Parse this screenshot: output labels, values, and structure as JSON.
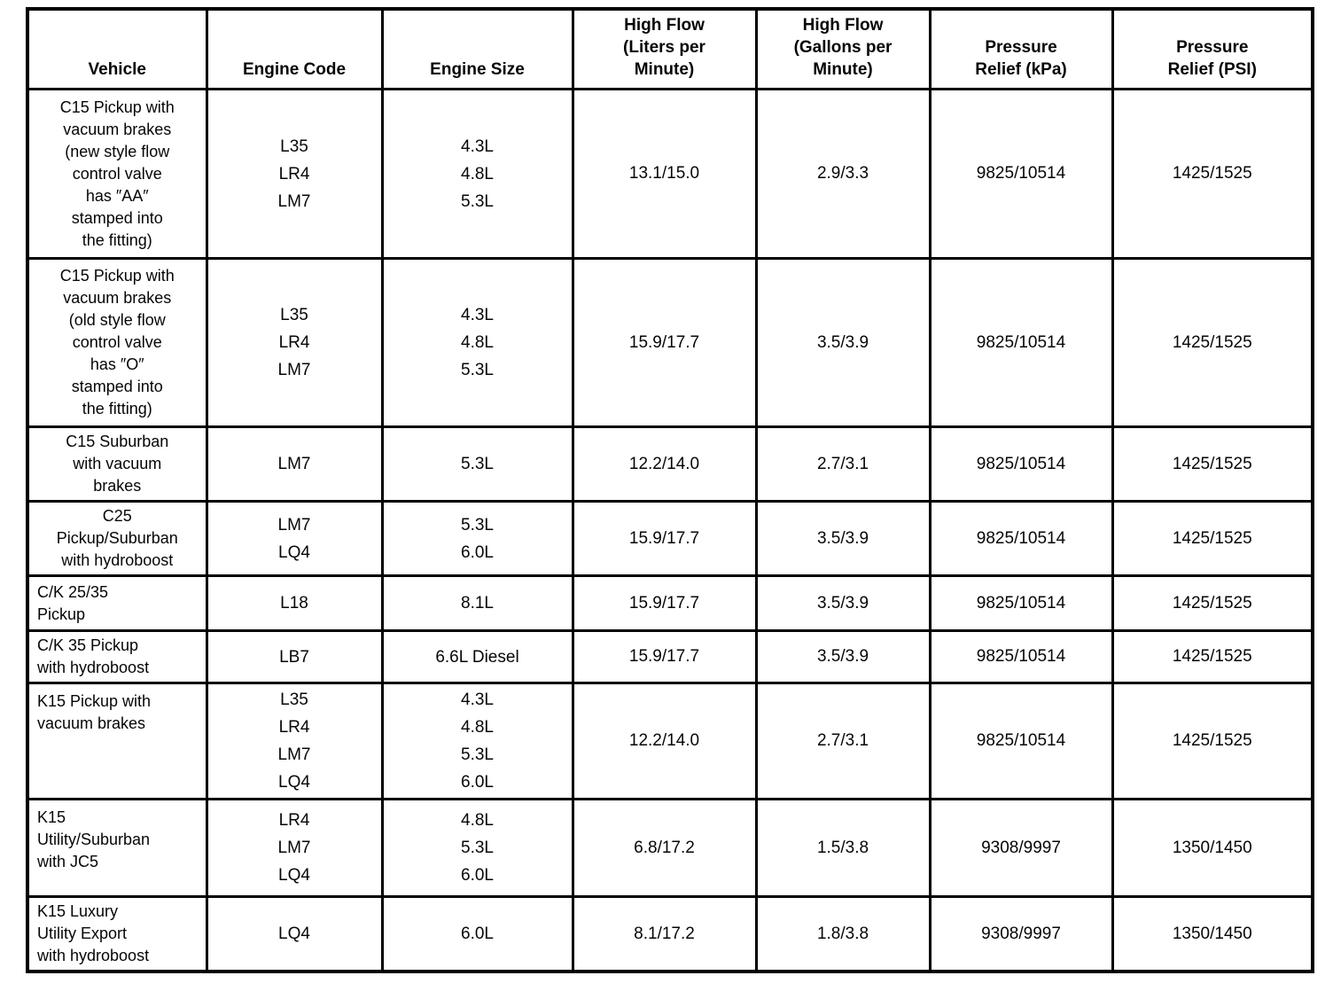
{
  "table": {
    "columns": [
      {
        "key": "vehicle",
        "label": "Vehicle",
        "label_lines": [
          "Vehicle"
        ]
      },
      {
        "key": "engine-code",
        "label": "Engine Code",
        "label_lines": [
          "Engine Code"
        ]
      },
      {
        "key": "engine-size",
        "label": "Engine Size",
        "label_lines": [
          "Engine Size"
        ]
      },
      {
        "key": "high-flow-lpm",
        "label": "High Flow (Liters per Minute)",
        "label_lines": [
          "High Flow",
          "(Liters per",
          "Minute)"
        ]
      },
      {
        "key": "high-flow-gpm",
        "label": "High Flow (Gallons per Minute)",
        "label_lines": [
          "High Flow",
          "(Gallons per",
          "Minute)"
        ]
      },
      {
        "key": "pressure-relief-kpa",
        "label": "Pressure Relief (kPa)",
        "label_lines": [
          "Pressure",
          "Relief (kPa)"
        ]
      },
      {
        "key": "pressure-relief-psi",
        "label": "Pressure Relief (PSI)",
        "label_lines": [
          "Pressure",
          "Relief (PSI)"
        ]
      }
    ],
    "rows": [
      {
        "vehicle_lines": [
          "C15 Pickup with",
          "vacuum brakes",
          "(new style flow",
          "control valve",
          "has ″AA″",
          "stamped into",
          "the fitting)"
        ],
        "engine_codes": [
          "L35",
          "LR4",
          "LM7"
        ],
        "engine_sizes": [
          "4.3L",
          "4.8L",
          "5.3L"
        ],
        "high_flow_lpm": "13.1/15.0",
        "high_flow_gpm": "2.9/3.3",
        "pressure_relief_kpa": "9825/10514",
        "pressure_relief_psi": "1425/1525",
        "vehicle_align": "center",
        "vehicle_valign": "middle"
      },
      {
        "vehicle_lines": [
          "C15 Pickup with",
          "vacuum brakes",
          "(old style flow",
          "control valve",
          "has ″O″",
          "stamped into",
          "the fitting)"
        ],
        "engine_codes": [
          "L35",
          "LR4",
          "LM7"
        ],
        "engine_sizes": [
          "4.3L",
          "4.8L",
          "5.3L"
        ],
        "high_flow_lpm": "15.9/17.7",
        "high_flow_gpm": "3.5/3.9",
        "pressure_relief_kpa": "9825/10514",
        "pressure_relief_psi": "1425/1525",
        "vehicle_align": "center",
        "vehicle_valign": "middle"
      },
      {
        "vehicle_lines": [
          "C15 Suburban",
          "with vacuum",
          "brakes"
        ],
        "engine_codes": [
          "LM7"
        ],
        "engine_sizes": [
          "5.3L"
        ],
        "high_flow_lpm": "12.2/14.0",
        "high_flow_gpm": "2.7/3.1",
        "pressure_relief_kpa": "9825/10514",
        "pressure_relief_psi": "1425/1525",
        "vehicle_align": "center",
        "vehicle_valign": "middle"
      },
      {
        "vehicle_lines": [
          "C25",
          "Pickup/Suburban",
          "with hydroboost"
        ],
        "engine_codes": [
          "LM7",
          "LQ4"
        ],
        "engine_sizes": [
          "5.3L",
          "6.0L"
        ],
        "high_flow_lpm": "15.9/17.7",
        "high_flow_gpm": "3.5/3.9",
        "pressure_relief_kpa": "9825/10514",
        "pressure_relief_psi": "1425/1525",
        "vehicle_align": "center",
        "vehicle_valign": "middle"
      },
      {
        "vehicle_lines": [
          "C/K 25/35",
          "Pickup"
        ],
        "engine_codes": [
          "L18"
        ],
        "engine_sizes": [
          "8.1L"
        ],
        "high_flow_lpm": "15.9/17.7",
        "high_flow_gpm": "3.5/3.9",
        "pressure_relief_kpa": "9825/10514",
        "pressure_relief_psi": "1425/1525",
        "vehicle_align": "left",
        "vehicle_valign": "middle"
      },
      {
        "vehicle_lines": [
          "C/K 35 Pickup",
          "with hydroboost"
        ],
        "engine_codes": [
          "LB7"
        ],
        "engine_sizes": [
          "6.6L Diesel"
        ],
        "high_flow_lpm": "15.9/17.7",
        "high_flow_gpm": "3.5/3.9",
        "pressure_relief_kpa": "9825/10514",
        "pressure_relief_psi": "1425/1525",
        "vehicle_align": "left",
        "vehicle_valign": "middle"
      },
      {
        "vehicle_lines": [
          "K15 Pickup with",
          "vacuum brakes"
        ],
        "engine_codes": [
          "L35",
          "LR4",
          "LM7",
          "LQ4"
        ],
        "engine_sizes": [
          "4.3L",
          "4.8L",
          "5.3L",
          "6.0L"
        ],
        "high_flow_lpm": "12.2/14.0",
        "high_flow_gpm": "2.7/3.1",
        "pressure_relief_kpa": "9825/10514",
        "pressure_relief_psi": "1425/1525",
        "vehicle_align": "left",
        "vehicle_valign": "top"
      },
      {
        "vehicle_lines": [
          "K15",
          "Utility/Suburban",
          "with JC5"
        ],
        "engine_codes": [
          "LR4",
          "LM7",
          "LQ4"
        ],
        "engine_sizes": [
          "4.8L",
          "5.3L",
          "6.0L"
        ],
        "high_flow_lpm": "6.8/17.2",
        "high_flow_gpm": "1.5/3.8",
        "pressure_relief_kpa": "9308/9997",
        "pressure_relief_psi": "1350/1450",
        "vehicle_align": "left",
        "vehicle_valign": "top"
      },
      {
        "vehicle_lines": [
          "K15 Luxury",
          "Utility Export",
          "with hydroboost"
        ],
        "engine_codes": [
          "LQ4"
        ],
        "engine_sizes": [
          "6.0L"
        ],
        "high_flow_lpm": "8.1/17.2",
        "high_flow_gpm": "1.8/3.8",
        "pressure_relief_kpa": "9308/9997",
        "pressure_relief_psi": "1350/1450",
        "vehicle_align": "left",
        "vehicle_valign": "middle"
      }
    ]
  }
}
